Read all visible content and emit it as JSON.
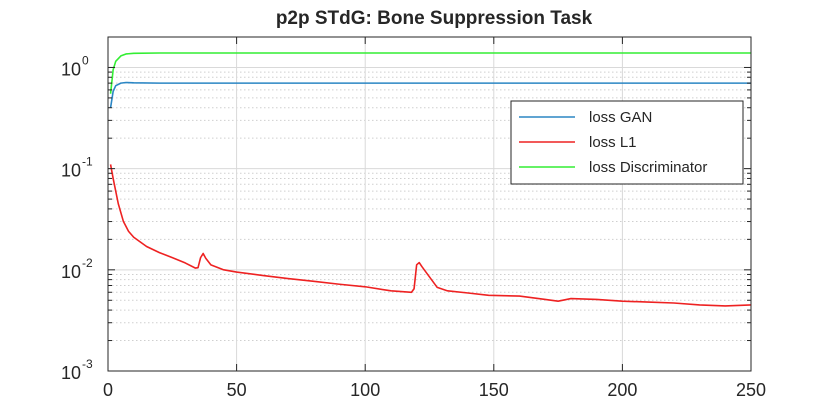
{
  "chart_data": {
    "type": "line",
    "title": "p2p STdG: Bone Suppression Task",
    "xlabel": "",
    "ylabel": "",
    "xlim": [
      0,
      250
    ],
    "ylim": [
      0.001,
      2
    ],
    "yscale": "log",
    "grid": true,
    "legend_position": "top-right",
    "x_ticks": [
      0,
      50,
      100,
      150,
      200,
      250
    ],
    "y_ticks": [
      {
        "value": 1,
        "base": "10",
        "exp": "0"
      },
      {
        "value": 0.1,
        "base": "10",
        "exp": "-1"
      },
      {
        "value": 0.01,
        "base": "10",
        "exp": "-2"
      },
      {
        "value": 0.001,
        "base": "10",
        "exp": "-3"
      }
    ],
    "series": [
      {
        "name": "loss GAN",
        "color": "#2b86c4",
        "points": [
          [
            1,
            0.4
          ],
          [
            2,
            0.58
          ],
          [
            3,
            0.66
          ],
          [
            5,
            0.7
          ],
          [
            7,
            0.71
          ],
          [
            10,
            0.705
          ],
          [
            20,
            0.7
          ],
          [
            50,
            0.7
          ],
          [
            100,
            0.7
          ],
          [
            150,
            0.7
          ],
          [
            200,
            0.7
          ],
          [
            250,
            0.7
          ]
        ]
      },
      {
        "name": "loss L1",
        "color": "#ee2222",
        "points": [
          [
            1,
            0.11
          ],
          [
            2,
            0.08
          ],
          [
            4,
            0.045
          ],
          [
            6,
            0.03
          ],
          [
            8,
            0.024
          ],
          [
            10,
            0.021
          ],
          [
            15,
            0.017
          ],
          [
            20,
            0.0148
          ],
          [
            25,
            0.0132
          ],
          [
            30,
            0.0117
          ],
          [
            34,
            0.0104
          ],
          [
            35,
            0.0105
          ],
          [
            36,
            0.0132
          ],
          [
            37,
            0.0145
          ],
          [
            38,
            0.013
          ],
          [
            40,
            0.0112
          ],
          [
            45,
            0.01
          ],
          [
            50,
            0.0095
          ],
          [
            60,
            0.0088
          ],
          [
            70,
            0.0082
          ],
          [
            80,
            0.0077
          ],
          [
            90,
            0.0072
          ],
          [
            100,
            0.0068
          ],
          [
            110,
            0.0062
          ],
          [
            118,
            0.006
          ],
          [
            119,
            0.0065
          ],
          [
            120,
            0.0112
          ],
          [
            121,
            0.0118
          ],
          [
            122,
            0.0108
          ],
          [
            125,
            0.0085
          ],
          [
            128,
            0.0067
          ],
          [
            132,
            0.0062
          ],
          [
            140,
            0.0059
          ],
          [
            148,
            0.0056
          ],
          [
            160,
            0.0055
          ],
          [
            170,
            0.0051
          ],
          [
            175,
            0.0049
          ],
          [
            180,
            0.0052
          ],
          [
            190,
            0.0051
          ],
          [
            200,
            0.0049
          ],
          [
            210,
            0.0048
          ],
          [
            220,
            0.0047
          ],
          [
            230,
            0.0045
          ],
          [
            240,
            0.0044
          ],
          [
            250,
            0.0045
          ]
        ]
      },
      {
        "name": "loss Discriminator",
        "color": "#33ee33",
        "points": [
          [
            1,
            0.55
          ],
          [
            2,
            0.95
          ],
          [
            3,
            1.15
          ],
          [
            5,
            1.3
          ],
          [
            7,
            1.36
          ],
          [
            10,
            1.38
          ],
          [
            20,
            1.39
          ],
          [
            50,
            1.39
          ],
          [
            100,
            1.39
          ],
          [
            150,
            1.39
          ],
          [
            200,
            1.39
          ],
          [
            250,
            1.39
          ]
        ]
      }
    ]
  }
}
